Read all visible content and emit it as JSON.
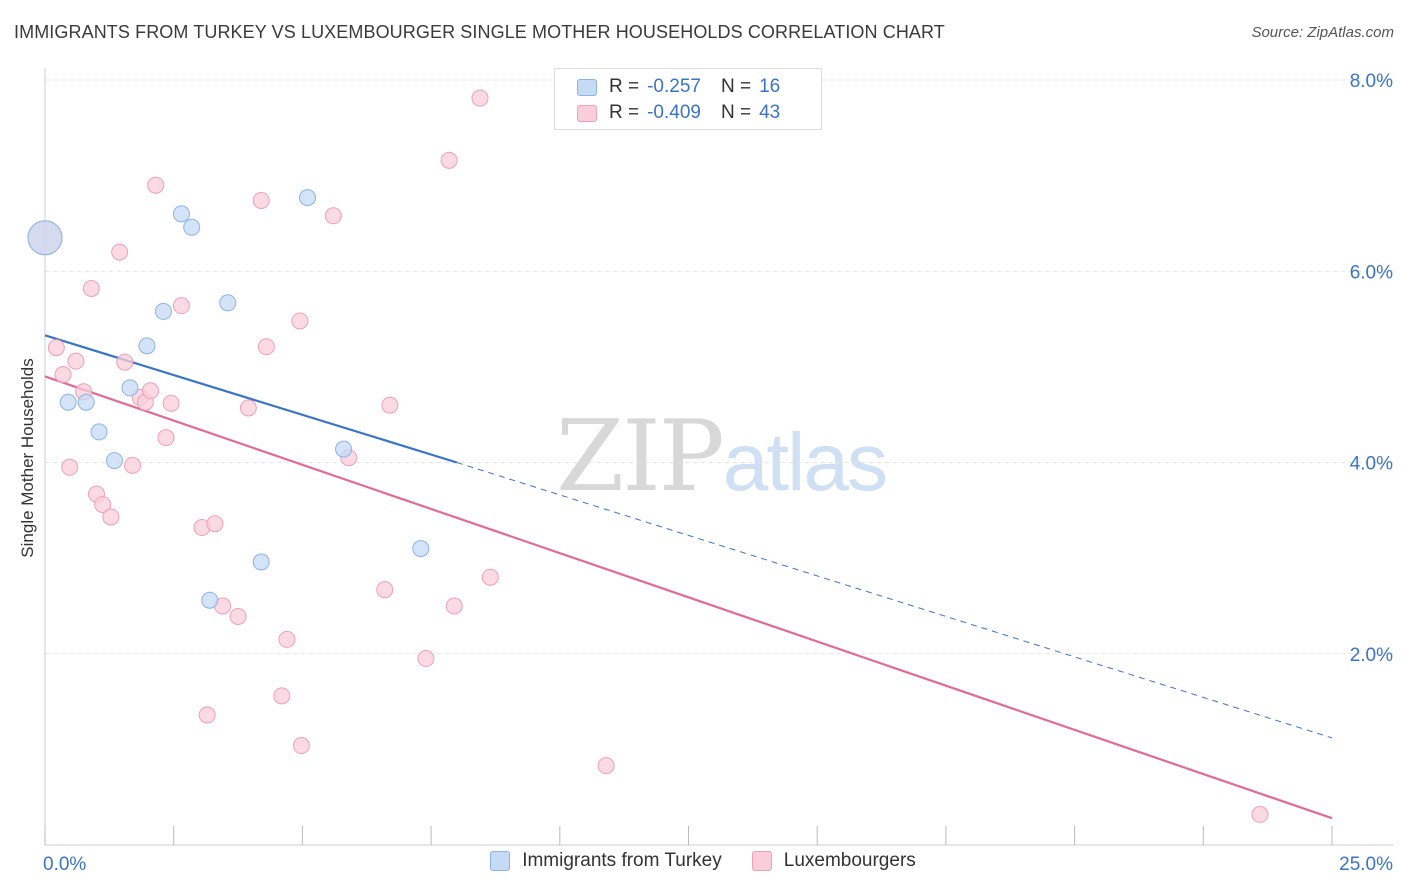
{
  "header": {
    "title": "IMMIGRANTS FROM TURKEY VS LUXEMBOURGER SINGLE MOTHER HOUSEHOLDS CORRELATION CHART",
    "source": "Source: ZipAtlas.com"
  },
  "watermark": {
    "zip": "ZIP",
    "atlas": "atlas"
  },
  "legend_top": [
    {
      "r_label": "R =",
      "r_value": "-0.257",
      "n_label": "N =",
      "n_value": "16"
    },
    {
      "r_label": "R =",
      "r_value": "-0.409",
      "n_label": "N =",
      "n_value": "43"
    }
  ],
  "chart_data": {
    "type": "scatter",
    "title": "IMMIGRANTS FROM TURKEY VS LUXEMBOURGER SINGLE MOTHER HOUSEHOLDS CORRELATION CHART",
    "xlabel": "",
    "ylabel": "Single Mother Households",
    "xlim": [
      0,
      25
    ],
    "ylim": [
      0,
      8
    ],
    "grid": true,
    "legend_placement": "bottom",
    "y_ticks": [
      {
        "value": 2,
        "label": "2.0%"
      },
      {
        "value": 4,
        "label": "4.0%"
      },
      {
        "value": 6,
        "label": "6.0%"
      },
      {
        "value": 8,
        "label": "8.0%"
      }
    ],
    "x_ticks": [
      {
        "value": 0,
        "label": "0.0%"
      },
      {
        "value": 25,
        "label": "25.0%"
      }
    ],
    "series": [
      {
        "name": "Immigrants from Turkey",
        "color": "#8ab4e8",
        "fill": "#c5daf4",
        "line_color": "#3a74c8",
        "points": [
          {
            "x": 0.0,
            "y": 6.35,
            "big": true
          },
          {
            "x": 0.45,
            "y": 4.63
          },
          {
            "x": 0.8,
            "y": 4.63
          },
          {
            "x": 1.05,
            "y": 4.32
          },
          {
            "x": 1.35,
            "y": 4.02
          },
          {
            "x": 1.65,
            "y": 4.78
          },
          {
            "x": 1.98,
            "y": 5.22
          },
          {
            "x": 2.3,
            "y": 5.58
          },
          {
            "x": 2.65,
            "y": 6.6
          },
          {
            "x": 2.85,
            "y": 6.46
          },
          {
            "x": 3.2,
            "y": 2.56
          },
          {
            "x": 3.55,
            "y": 5.67
          },
          {
            "x": 4.2,
            "y": 2.96
          },
          {
            "x": 5.1,
            "y": 6.77
          },
          {
            "x": 5.8,
            "y": 4.14
          },
          {
            "x": 7.3,
            "y": 3.1
          }
        ],
        "trend": {
          "x0": 0,
          "y0": 5.33,
          "x1": 8.0,
          "y1": 4.0,
          "dash_x1": 25.0,
          "dash_y1": 1.12
        }
      },
      {
        "name": "Luxembourgers",
        "color": "#f0a0b8",
        "fill": "#f9cdd9",
        "line_color": "#e36b93",
        "points": [
          {
            "x": 0.0,
            "y": 6.35,
            "big": true
          },
          {
            "x": 0.22,
            "y": 5.2
          },
          {
            "x": 0.35,
            "y": 4.92
          },
          {
            "x": 0.48,
            "y": 3.95
          },
          {
            "x": 0.6,
            "y": 5.06
          },
          {
            "x": 0.75,
            "y": 4.74
          },
          {
            "x": 0.9,
            "y": 5.82
          },
          {
            "x": 1.0,
            "y": 3.67
          },
          {
            "x": 1.12,
            "y": 3.56
          },
          {
            "x": 1.28,
            "y": 3.43
          },
          {
            "x": 1.45,
            "y": 6.2
          },
          {
            "x": 1.55,
            "y": 5.05
          },
          {
            "x": 1.7,
            "y": 3.97
          },
          {
            "x": 1.85,
            "y": 4.68
          },
          {
            "x": 1.95,
            "y": 4.63
          },
          {
            "x": 2.05,
            "y": 4.75
          },
          {
            "x": 2.15,
            "y": 6.9
          },
          {
            "x": 2.35,
            "y": 4.26
          },
          {
            "x": 2.45,
            "y": 4.62
          },
          {
            "x": 2.65,
            "y": 5.64
          },
          {
            "x": 3.05,
            "y": 3.32
          },
          {
            "x": 3.15,
            "y": 1.36
          },
          {
            "x": 3.3,
            "y": 3.36
          },
          {
            "x": 3.45,
            "y": 2.5
          },
          {
            "x": 3.75,
            "y": 2.39
          },
          {
            "x": 3.95,
            "y": 4.57
          },
          {
            "x": 4.2,
            "y": 6.74
          },
          {
            "x": 4.3,
            "y": 5.21
          },
          {
            "x": 4.6,
            "y": 1.56
          },
          {
            "x": 4.7,
            "y": 2.15
          },
          {
            "x": 4.95,
            "y": 5.48
          },
          {
            "x": 4.98,
            "y": 1.04
          },
          {
            "x": 5.6,
            "y": 6.58
          },
          {
            "x": 5.9,
            "y": 4.05
          },
          {
            "x": 6.6,
            "y": 2.67
          },
          {
            "x": 6.7,
            "y": 4.6
          },
          {
            "x": 7.4,
            "y": 1.95
          },
          {
            "x": 7.85,
            "y": 7.16
          },
          {
            "x": 7.95,
            "y": 2.5
          },
          {
            "x": 8.45,
            "y": 7.81
          },
          {
            "x": 8.65,
            "y": 2.8
          },
          {
            "x": 10.9,
            "y": 0.83
          },
          {
            "x": 23.6,
            "y": 0.32
          }
        ],
        "trend": {
          "x0": 0,
          "y0": 4.9,
          "x1": 25.0,
          "y1": 0.28
        }
      }
    ]
  }
}
